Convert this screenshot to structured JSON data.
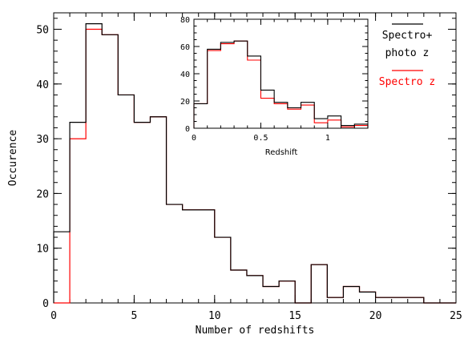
{
  "chart_data": [
    {
      "type": "histogram",
      "xlabel": "Number of redshifts",
      "ylabel": "Occurence",
      "xlim": [
        0,
        25
      ],
      "ylim": [
        0,
        53
      ],
      "xticks": [
        0,
        5,
        10,
        15,
        20,
        25
      ],
      "yticks": [
        0,
        10,
        20,
        30,
        40,
        50
      ],
      "bin_edges": [
        0,
        1,
        2,
        3,
        4,
        5,
        6,
        7,
        8,
        9,
        10,
        11,
        12,
        13,
        14,
        15,
        16,
        17,
        18,
        19,
        20,
        21,
        22,
        23,
        24,
        25
      ],
      "series": [
        {
          "name": "Spectro+ photo z",
          "color": "#000000",
          "values": [
            13,
            33,
            51,
            49,
            38,
            33,
            34,
            18,
            17,
            17,
            12,
            6,
            5,
            3,
            4,
            0,
            7,
            1,
            3,
            2,
            1,
            1,
            1,
            0,
            0
          ]
        },
        {
          "name": "Spectro z",
          "color": "#ff0000",
          "values": [
            0,
            30,
            50,
            49,
            38,
            33,
            34,
            18,
            17,
            17,
            12,
            6,
            5,
            3,
            4,
            0,
            7,
            1,
            3,
            2,
            1,
            1,
            1,
            0,
            0
          ]
        }
      ],
      "legend": {
        "position": "top-right",
        "entries": [
          {
            "lines": [
              "Spectro+",
              "photo z"
            ],
            "color": "#000000"
          },
          {
            "lines": [
              "Spectro z"
            ],
            "color": "#ff0000"
          }
        ]
      }
    },
    {
      "type": "histogram",
      "role": "inset",
      "xlabel": "Redshift",
      "ylabel": "",
      "xlim": [
        0,
        1.3
      ],
      "ylim": [
        0,
        80
      ],
      "xticks": [
        0,
        0.5,
        1
      ],
      "xtick_labels": [
        "0",
        "0.5",
        "1"
      ],
      "yticks": [
        0,
        20,
        40,
        60,
        80
      ],
      "bin_edges": [
        0,
        0.1,
        0.2,
        0.3,
        0.4,
        0.5,
        0.6,
        0.7,
        0.8,
        0.9,
        1.0,
        1.1,
        1.2,
        1.3
      ],
      "series": [
        {
          "name": "Spectro+ photo z",
          "color": "#000000",
          "values": [
            18,
            58,
            63,
            64,
            53,
            28,
            19,
            15,
            19,
            7,
            9,
            2,
            3
          ]
        },
        {
          "name": "Spectro z",
          "color": "#ff0000",
          "values": [
            18,
            57,
            62,
            64,
            50,
            22,
            18,
            14,
            17,
            4,
            6,
            1,
            2
          ]
        }
      ]
    }
  ]
}
